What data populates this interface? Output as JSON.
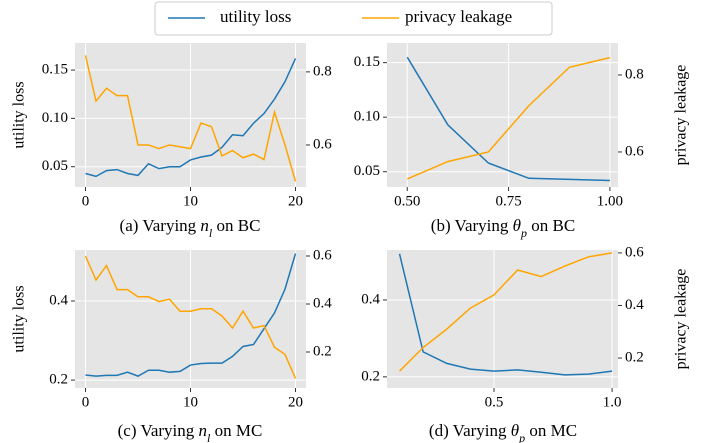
{
  "chart_data": [
    {
      "type": "line",
      "caption": [
        "(a) Varying ",
        "n",
        "l",
        " on BC"
      ],
      "ylabel": "utility loss",
      "x": [
        0,
        1,
        2,
        3,
        4,
        5,
        6,
        7,
        8,
        9,
        10,
        11,
        12,
        13,
        14,
        15,
        16,
        17,
        18,
        19,
        20
      ],
      "xlim": [
        -1,
        21
      ],
      "xticks": [
        0,
        10,
        20
      ],
      "ylim": [
        0.029,
        0.178
      ],
      "yticks": [
        {
          "value": 0.05,
          "label": "0.05"
        },
        {
          "value": 0.1,
          "label": "0.10"
        },
        {
          "value": 0.15,
          "label": "0.15"
        }
      ],
      "y2lim": [
        0.485,
        0.879
      ],
      "y2ticks": [
        0.6,
        0.8
      ],
      "grid": true,
      "series": [
        {
          "name": "utility loss",
          "color": "#1f77b4",
          "values": [
            0.043,
            0.04,
            0.046,
            0.047,
            0.043,
            0.041,
            0.053,
            0.048,
            0.05,
            0.05,
            0.057,
            0.06,
            0.062,
            0.07,
            0.083,
            0.082,
            0.095,
            0.105,
            0.12,
            0.138,
            0.162
          ]
        },
        {
          "name": "privacy leakage",
          "color": "#ffa500",
          "axis": "y2",
          "values": [
            0.845,
            0.72,
            0.755,
            0.735,
            0.735,
            0.6,
            0.6,
            0.59,
            0.6,
            0.595,
            0.59,
            0.66,
            0.65,
            0.57,
            0.585,
            0.565,
            0.575,
            0.56,
            0.69,
            0.6,
            0.5
          ]
        }
      ]
    },
    {
      "type": "line",
      "caption": [
        "(b) Varying ",
        "θ",
        "p",
        " on BC"
      ],
      "y2label": "privacy leakage",
      "x": [
        0.5,
        0.6,
        0.7,
        0.8,
        0.9,
        1.0
      ],
      "xlim": [
        0.45,
        1.02
      ],
      "xticks": [
        {
          "value": 0.5,
          "label": "0.50"
        },
        {
          "value": 0.75,
          "label": "0.75"
        },
        {
          "value": 1.0,
          "label": "1.00"
        }
      ],
      "ylim": [
        0.036,
        0.168
      ],
      "yticks": [
        {
          "value": 0.05,
          "label": "0.05"
        },
        {
          "value": 0.1,
          "label": "0.10"
        },
        {
          "value": 0.15,
          "label": "0.15"
        }
      ],
      "y2lim": [
        0.509,
        0.883
      ],
      "y2ticks": [
        0.6,
        0.8
      ],
      "grid": true,
      "series": [
        {
          "name": "utility loss",
          "color": "#1f77b4",
          "values": [
            0.155,
            0.093,
            0.058,
            0.044,
            0.043,
            0.042
          ]
        },
        {
          "name": "privacy leakage",
          "color": "#ffa500",
          "axis": "y2",
          "values": [
            0.53,
            0.575,
            0.6,
            0.72,
            0.82,
            0.845
          ]
        }
      ]
    },
    {
      "type": "line",
      "caption": [
        "(c) Varying ",
        "n",
        "l",
        " on MC"
      ],
      "ylabel": "utility loss",
      "x": [
        0,
        1,
        2,
        3,
        4,
        5,
        6,
        7,
        8,
        9,
        10,
        11,
        12,
        13,
        14,
        15,
        16,
        17,
        18,
        19,
        20
      ],
      "xlim": [
        -1,
        21
      ],
      "xticks": [
        0,
        10,
        20
      ],
      "ylim": [
        0.18,
        0.529
      ],
      "yticks": [
        0.2,
        0.4
      ],
      "y2lim": [
        0.05,
        0.625
      ],
      "y2ticks": [
        0.2,
        0.4,
        0.6
      ],
      "grid": true,
      "series": [
        {
          "name": "utility loss",
          "color": "#1f77b4",
          "values": [
            0.213,
            0.21,
            0.212,
            0.212,
            0.22,
            0.21,
            0.225,
            0.225,
            0.22,
            0.222,
            0.238,
            0.242,
            0.243,
            0.243,
            0.26,
            0.285,
            0.29,
            0.33,
            0.37,
            0.43,
            0.52
          ]
        },
        {
          "name": "privacy leakage",
          "color": "#ffa500",
          "axis": "y2",
          "values": [
            0.6,
            0.5,
            0.56,
            0.46,
            0.46,
            0.43,
            0.43,
            0.41,
            0.42,
            0.37,
            0.37,
            0.38,
            0.38,
            0.35,
            0.3,
            0.37,
            0.3,
            0.31,
            0.22,
            0.19,
            0.09
          ]
        }
      ]
    },
    {
      "type": "line",
      "caption": [
        "(d) Varying ",
        "θ",
        "p",
        " on MC"
      ],
      "y2label": "privacy leakage",
      "x": [
        0.1,
        0.2,
        0.3,
        0.4,
        0.5,
        0.6,
        0.7,
        0.8,
        0.9,
        1.0
      ],
      "xlim": [
        0.047,
        1.025
      ],
      "xticks": [
        0.5,
        {
          "value": 1.0,
          "label": "1.0"
        }
      ],
      "ylim": [
        0.171,
        0.53
      ],
      "yticks": [
        0.2,
        0.4
      ],
      "y2lim": [
        0.086,
        0.611
      ],
      "y2ticks": [
        0.2,
        0.4,
        0.6
      ],
      "grid": true,
      "series": [
        {
          "name": "utility loss",
          "color": "#1f77b4",
          "values": [
            0.52,
            0.265,
            0.235,
            0.22,
            0.215,
            0.218,
            0.212,
            0.205,
            0.207,
            0.215
          ]
        },
        {
          "name": "privacy leakage",
          "color": "#ffa500",
          "axis": "y2",
          "values": [
            0.15,
            0.24,
            0.31,
            0.39,
            0.44,
            0.535,
            0.51,
            0.55,
            0.585,
            0.6
          ]
        }
      ]
    }
  ]
}
